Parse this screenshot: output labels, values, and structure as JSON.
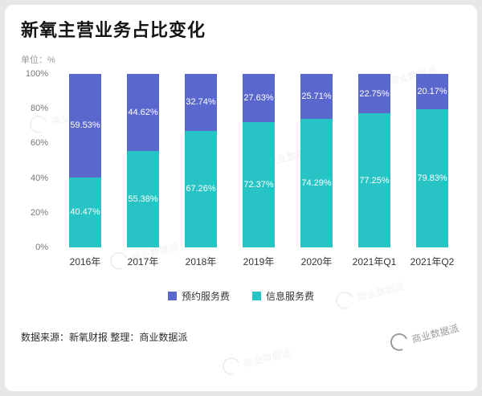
{
  "page": {
    "title": "新氧主营业务占比变化",
    "unit_label": "单位：%",
    "source_note": "数据来源：新氧财报 整理：商业数据派",
    "watermark_text": "商业数据派"
  },
  "chart_data": {
    "type": "bar",
    "stacked": true,
    "stack_total": 100,
    "title": "新氧主营业务占比变化",
    "unit": "%",
    "categories": [
      "2016年",
      "2017年",
      "2018年",
      "2019年",
      "2020年",
      "2021年Q1",
      "2021年Q2"
    ],
    "series": [
      {
        "name": "预约服务费",
        "color": "#5A68CE",
        "position": "top",
        "values": [
          59.53,
          44.62,
          32.74,
          27.63,
          25.71,
          22.75,
          20.17
        ]
      },
      {
        "name": "信息服务费",
        "color": "#28C3C5",
        "position": "bottom",
        "values": [
          40.47,
          55.38,
          67.26,
          72.37,
          74.29,
          77.25,
          79.83
        ]
      }
    ],
    "y_ticks": [
      "100%",
      "80%",
      "60%",
      "40%",
      "20%",
      "0%"
    ],
    "ylim": [
      0,
      100
    ],
    "grid": false,
    "data_labels": true,
    "legend_position": "bottom"
  }
}
